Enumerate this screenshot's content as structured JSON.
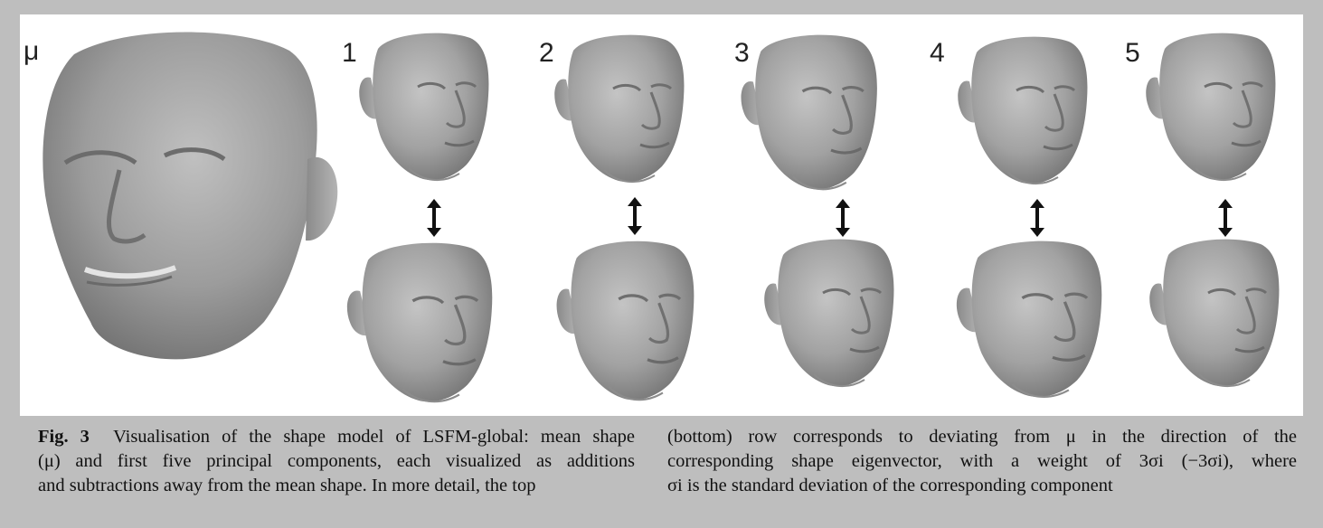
{
  "figure": {
    "mean_label": "μ",
    "component_labels": [
      "1",
      "2",
      "3",
      "4",
      "5"
    ]
  },
  "caption": {
    "fig_label": "Fig. 3",
    "left_lines": [
      "Visualisation of the shape model of LSFM-global: mean shape",
      "(μ) and first five principal components, each visualized as additions",
      "and subtractions away from the mean shape. In more detail, the top"
    ],
    "right_lines": [
      "(bottom) row corresponds to deviating from μ in the direction of the",
      "corresponding shape eigenvector, with a weight of 3σi (−3σi), where",
      "σi is the standard deviation of the corresponding component"
    ]
  },
  "colors": {
    "background": "#bebebe",
    "panel": "#ffffff",
    "face_light": "#b8b8b8",
    "face_dark": "#7a7a7a"
  }
}
